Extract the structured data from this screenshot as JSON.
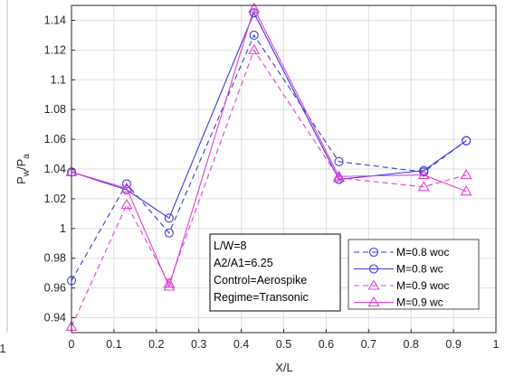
{
  "chart_data": {
    "type": "line",
    "xlabel": "X/L",
    "ylabel": {
      "base1": "P",
      "sub1": "w",
      "mid": "/P",
      "sub2": "a"
    },
    "xlim": [
      0,
      1
    ],
    "ylim": [
      0.93,
      1.15
    ],
    "xticks": [
      "0",
      "0.1",
      "0.2",
      "0.3",
      "0.4",
      "0.5",
      "0.6",
      "0.7",
      "0.8",
      "0.9",
      "1"
    ],
    "yticks": [
      "0.94",
      "0.96",
      "0.98",
      "1",
      "1.02",
      "1.04",
      "1.06",
      "1.08",
      "1.1",
      "1.12",
      "1.14"
    ],
    "left_fragment_tick": "1",
    "grid": true,
    "x": [
      0,
      0.13,
      0.23,
      0.43,
      0.63,
      0.83,
      0.93
    ],
    "series": [
      {
        "name": "M=0.8 woc",
        "color": "#3a3ae0",
        "dash": true,
        "marker": "circle",
        "values": [
          0.965,
          1.03,
          0.997,
          1.13,
          1.045,
          1.038,
          1.059
        ]
      },
      {
        "name": "M=0.8 wc",
        "color": "#3a3ae0",
        "dash": false,
        "marker": "circle",
        "values": [
          1.038,
          1.026,
          1.007,
          1.145,
          1.033,
          1.039,
          1.059
        ]
      },
      {
        "name": "M=0.9 woc",
        "color": "#e040d0",
        "dash": true,
        "marker": "triangle",
        "values": [
          0.934,
          1.016,
          0.963,
          1.12,
          1.034,
          1.028,
          1.036
        ]
      },
      {
        "name": "M=0.9 wc",
        "color": "#e040d0",
        "dash": false,
        "marker": "triangle",
        "values": [
          1.038,
          1.027,
          0.961,
          1.148,
          1.035,
          1.036,
          1.025
        ]
      }
    ],
    "annotation": [
      "L/W=8",
      "A2/A1=6.25",
      "Control=Aerospike",
      "Regime=Transonic"
    ],
    "legend_placement": "bottom-right"
  }
}
